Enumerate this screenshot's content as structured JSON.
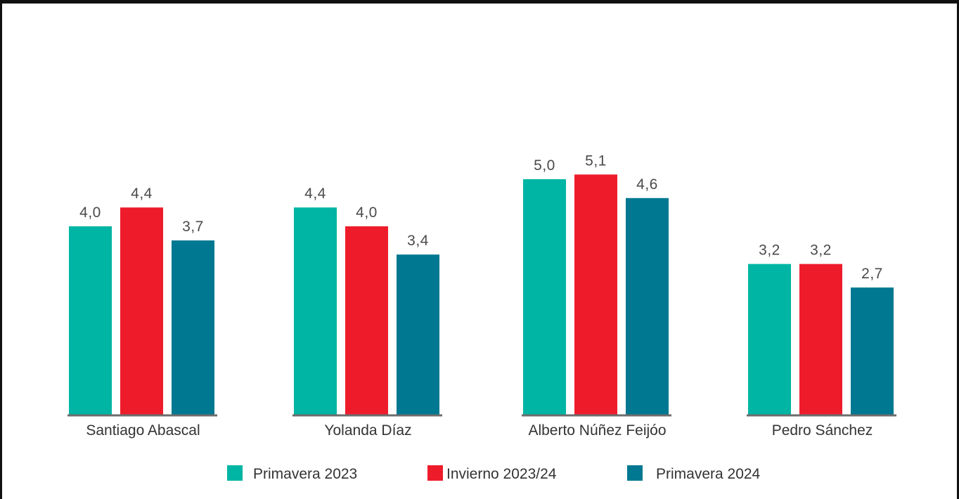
{
  "chart_data": {
    "type": "bar",
    "categories": [
      "Santiago Abascal",
      "Yolanda Díaz",
      "Alberto Núñez Feijóo",
      "Pedro Sánchez"
    ],
    "series": [
      {
        "name": "Primavera 2023",
        "color": "#00b5a4",
        "values": [
          4.0,
          4.4,
          5.0,
          3.2
        ],
        "labels": [
          "4,0",
          "4,4",
          "5,0",
          "3,2"
        ]
      },
      {
        "name": "Invierno 2023/24",
        "color": "#ee1c2b",
        "values": [
          4.4,
          4.0,
          5.1,
          3.2
        ],
        "labels": [
          "4,4",
          "4,0",
          "5,1",
          "3,2"
        ]
      },
      {
        "name": "Primavera 2024",
        "color": "#007891",
        "values": [
          3.7,
          3.4,
          4.6,
          2.7
        ],
        "labels": [
          "3,7",
          "3,4",
          "4,6",
          "2,7"
        ]
      }
    ],
    "ylim": [
      0,
      5.1
    ],
    "grid": false,
    "legend_position": "bottom"
  }
}
